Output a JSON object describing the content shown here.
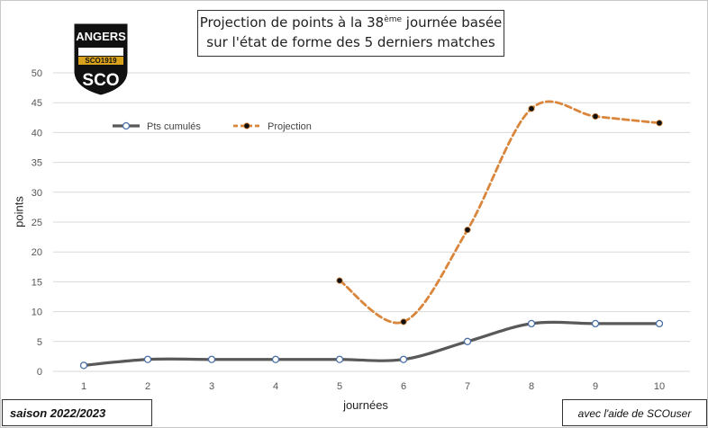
{
  "title": {
    "line1_before": "Projection de points à la 38",
    "line1_sup": "ème",
    "line1_after": " journée basée",
    "line2": "sur l'état de forme des 5 derniers matches"
  },
  "logo": {
    "top_text": "ANGERS",
    "band_text": "SCO1919",
    "letters": "SCO"
  },
  "season_label": "saison 2022/2023",
  "credit_label": "avec l'aide de SCOuser",
  "chart_data": {
    "type": "line",
    "xlabel": "journées",
    "ylabel": "points",
    "x": [
      1,
      2,
      3,
      4,
      5,
      6,
      7,
      8,
      9,
      10
    ],
    "ylim": [
      0,
      50
    ],
    "yticks": [
      0,
      5,
      10,
      15,
      20,
      25,
      30,
      35,
      40,
      45,
      50
    ],
    "grid": "horizontal",
    "legend_placement": "top-left",
    "series": [
      {
        "name": "Pts cumulés",
        "color": "#595959",
        "style": "solid",
        "marker": "white-circle",
        "x": [
          1,
          2,
          3,
          4,
          5,
          6,
          7,
          8,
          9,
          10
        ],
        "values": [
          1,
          2,
          2,
          2,
          2,
          2,
          5,
          8,
          8,
          8
        ]
      },
      {
        "name": "Projection",
        "color": "#d9863c",
        "style": "dashed",
        "marker": "black-dot",
        "x": [
          5,
          6,
          7,
          8,
          9,
          10
        ],
        "values": [
          15.2,
          8.3,
          23.7,
          44,
          42.7,
          41.6
        ]
      }
    ]
  }
}
